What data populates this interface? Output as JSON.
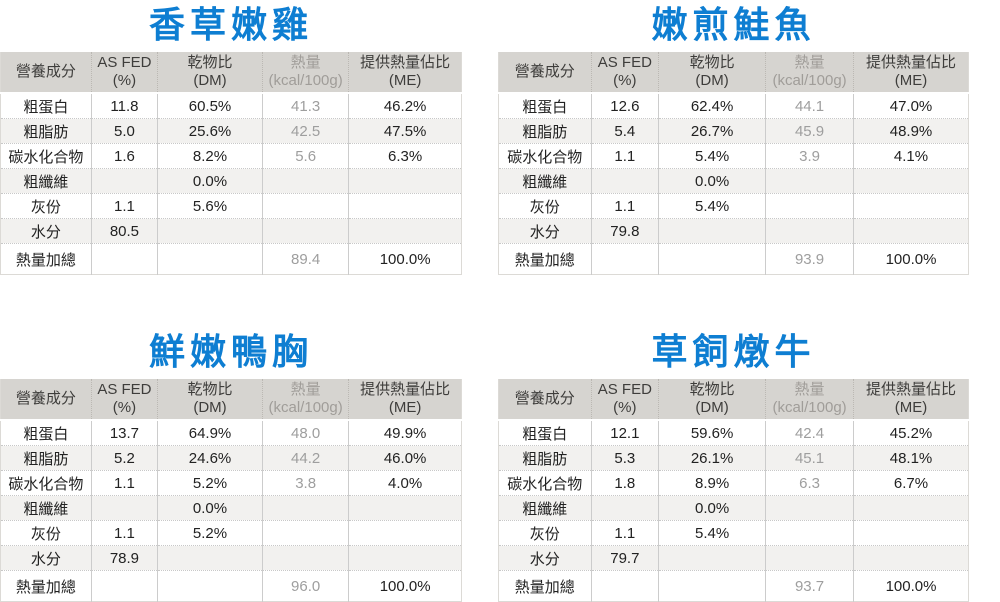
{
  "colors": {
    "title_blue": "#0e7ed2",
    "header_bg": "#d6d4d0",
    "header_text": "#3e3d3b",
    "muted_header_text": "#a09d99",
    "muted_value_text": "#9e9e9e",
    "body_text": "#222222",
    "alt_row_bg": "#f2f1ef",
    "grid_line": "#cccccc"
  },
  "columns": [
    {
      "key": "nutrient",
      "line1": "營養成分",
      "line2": ""
    },
    {
      "key": "as-fed",
      "line1": "AS FED",
      "line2": "(%)"
    },
    {
      "key": "dm",
      "line1": "乾物比",
      "line2": "(DM)"
    },
    {
      "key": "kcal",
      "line1": "熱量",
      "line2": "(kcal/100g)"
    },
    {
      "key": "me",
      "line1": "提供熱量佔比",
      "line2": "(ME)"
    }
  ],
  "muted_column_index": 3,
  "chart_data": [
    {
      "type": "table",
      "title": "香草嫩雞",
      "column_headers": [
        "營養成分",
        "AS FED (%)",
        "乾物比 (DM)",
        "熱量 (kcal/100g)",
        "提供熱量佔比 (ME)"
      ],
      "rows": [
        [
          "粗蛋白",
          "11.8",
          "60.5%",
          "41.3",
          "46.2%"
        ],
        [
          "粗脂肪",
          "5.0",
          "25.6%",
          "42.5",
          "47.5%"
        ],
        [
          "碳水化合物",
          "1.6",
          "8.2%",
          "5.6",
          "6.3%"
        ],
        [
          "粗纖維",
          "",
          "0.0%",
          "",
          ""
        ],
        [
          "灰份",
          "1.1",
          "5.6%",
          "",
          ""
        ],
        [
          "水分",
          "80.5",
          "",
          "",
          ""
        ],
        [
          "熱量加總",
          "",
          "",
          "89.4",
          "100.0%"
        ]
      ]
    },
    {
      "type": "table",
      "title": "嫩煎鮭魚",
      "column_headers": [
        "營養成分",
        "AS FED (%)",
        "乾物比 (DM)",
        "熱量 (kcal/100g)",
        "提供熱量佔比 (ME)"
      ],
      "rows": [
        [
          "粗蛋白",
          "12.6",
          "62.4%",
          "44.1",
          "47.0%"
        ],
        [
          "粗脂肪",
          "5.4",
          "26.7%",
          "45.9",
          "48.9%"
        ],
        [
          "碳水化合物",
          "1.1",
          "5.4%",
          "3.9",
          "4.1%"
        ],
        [
          "粗纖維",
          "",
          "0.0%",
          "",
          ""
        ],
        [
          "灰份",
          "1.1",
          "5.4%",
          "",
          ""
        ],
        [
          "水分",
          "79.8",
          "",
          "",
          ""
        ],
        [
          "熱量加總",
          "",
          "",
          "93.9",
          "100.0%"
        ]
      ]
    },
    {
      "type": "table",
      "title": "鮮嫩鴨胸",
      "column_headers": [
        "營養成分",
        "AS FED (%)",
        "乾物比 (DM)",
        "熱量 (kcal/100g)",
        "提供熱量佔比 (ME)"
      ],
      "rows": [
        [
          "粗蛋白",
          "13.7",
          "64.9%",
          "48.0",
          "49.9%"
        ],
        [
          "粗脂肪",
          "5.2",
          "24.6%",
          "44.2",
          "46.0%"
        ],
        [
          "碳水化合物",
          "1.1",
          "5.2%",
          "3.8",
          "4.0%"
        ],
        [
          "粗纖維",
          "",
          "0.0%",
          "",
          ""
        ],
        [
          "灰份",
          "1.1",
          "5.2%",
          "",
          ""
        ],
        [
          "水分",
          "78.9",
          "",
          "",
          ""
        ],
        [
          "熱量加總",
          "",
          "",
          "96.0",
          "100.0%"
        ]
      ]
    },
    {
      "type": "table",
      "title": "草飼燉牛",
      "column_headers": [
        "營養成分",
        "AS FED (%)",
        "乾物比 (DM)",
        "熱量 (kcal/100g)",
        "提供熱量佔比 (ME)"
      ],
      "rows": [
        [
          "粗蛋白",
          "12.1",
          "59.6%",
          "42.4",
          "45.2%"
        ],
        [
          "粗脂肪",
          "5.3",
          "26.1%",
          "45.1",
          "48.1%"
        ],
        [
          "碳水化合物",
          "1.8",
          "8.9%",
          "6.3",
          "6.7%"
        ],
        [
          "粗纖維",
          "",
          "0.0%",
          "",
          ""
        ],
        [
          "灰份",
          "1.1",
          "5.4%",
          "",
          ""
        ],
        [
          "水分",
          "79.7",
          "",
          "",
          ""
        ],
        [
          "熱量加總",
          "",
          "",
          "93.7",
          "100.0%"
        ]
      ]
    }
  ]
}
